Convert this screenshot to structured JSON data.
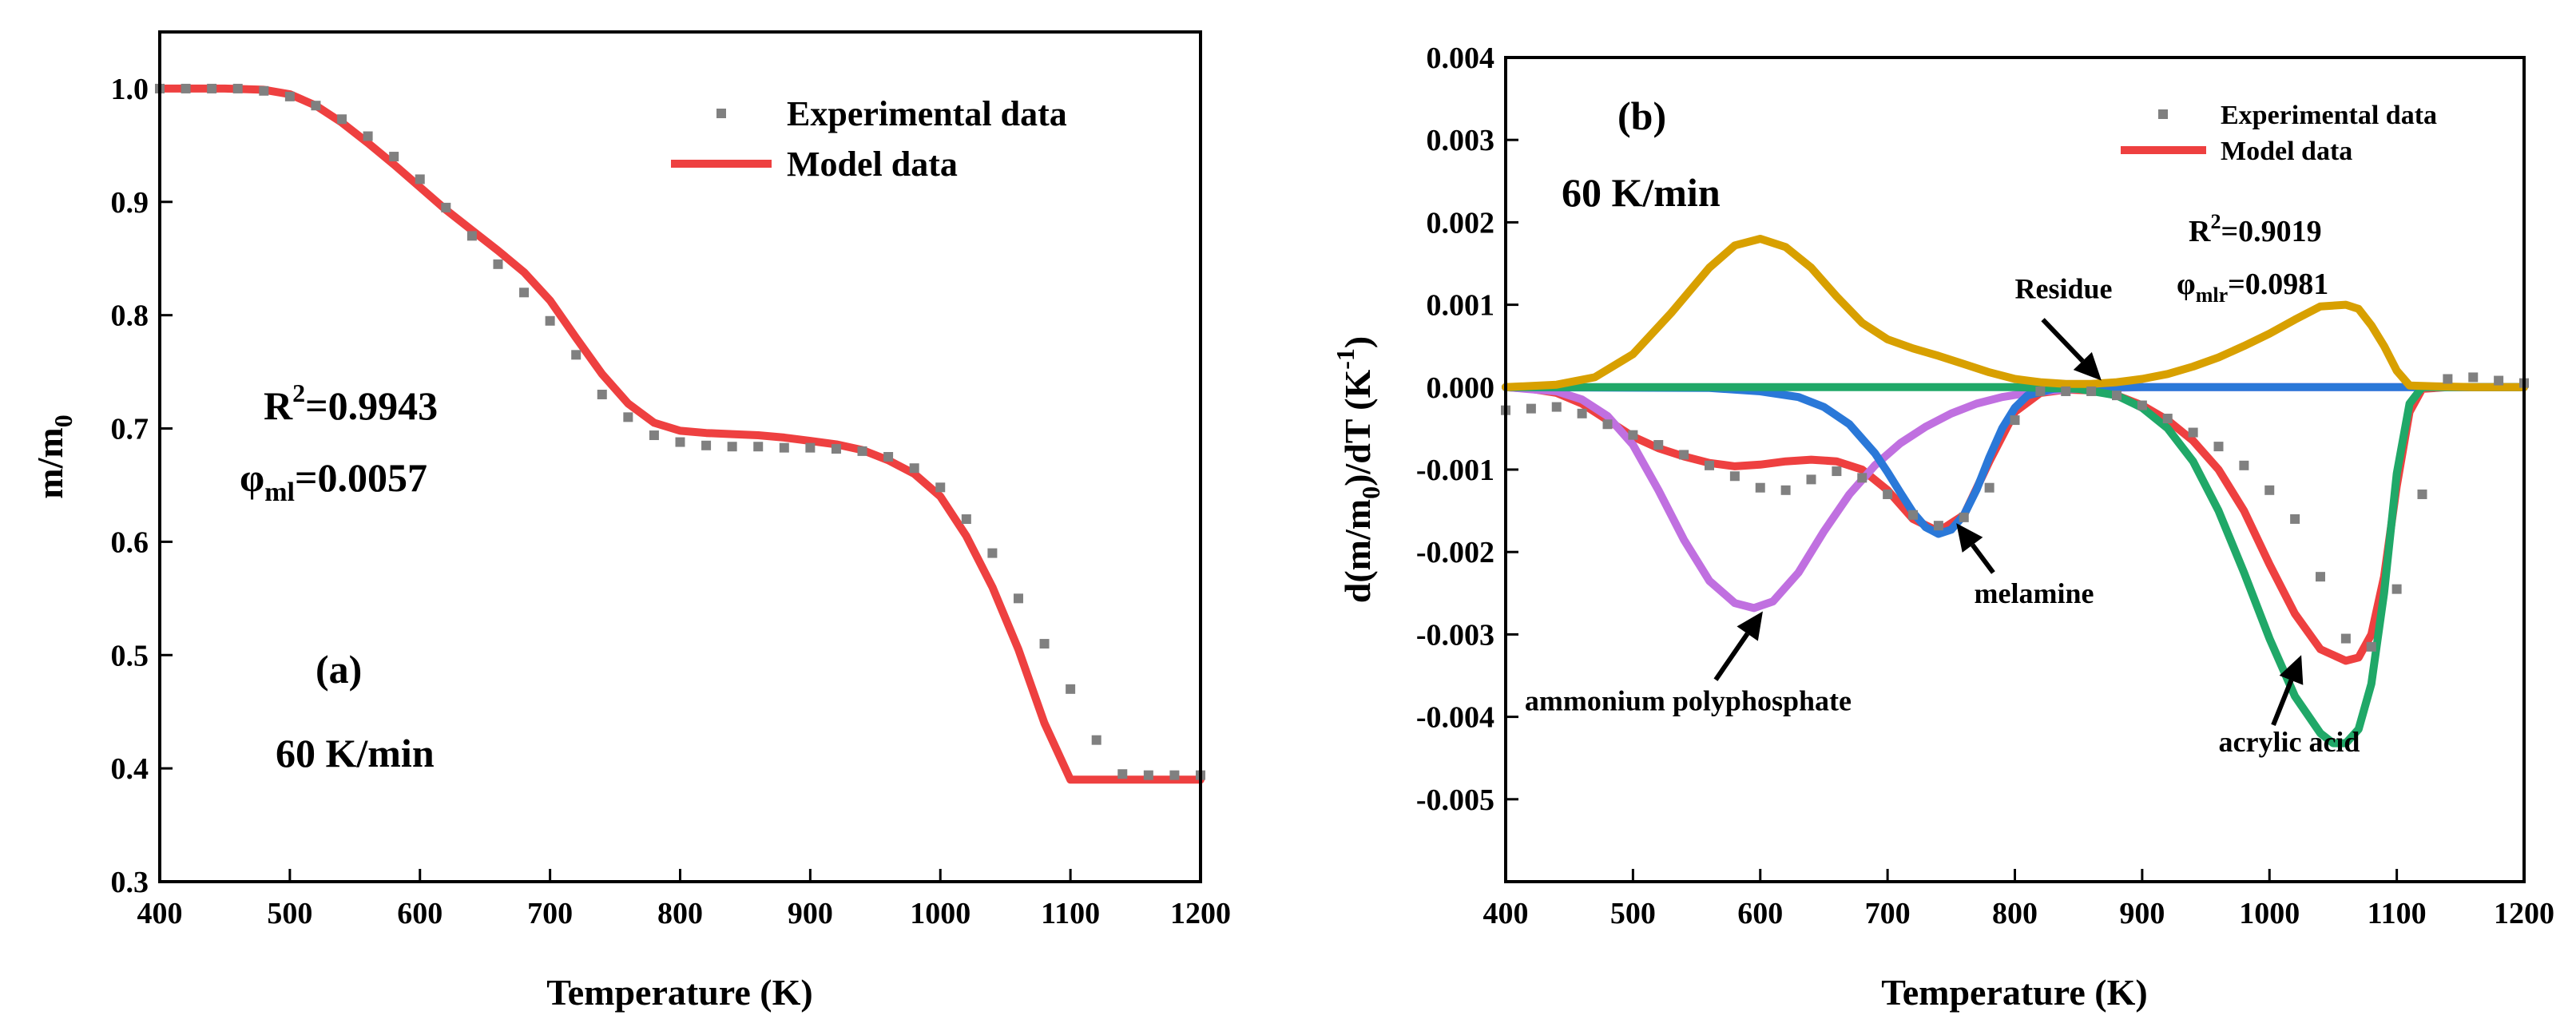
{
  "chart_data": [
    {
      "id": "a",
      "type": "line",
      "xlabel": "Temperature (K)",
      "ylabel": "m/m",
      "ylabel_sub": "0",
      "xlim": [
        400,
        1200
      ],
      "ylim": [
        0.3,
        1.05
      ],
      "xticks": [
        400,
        500,
        600,
        700,
        800,
        900,
        1000,
        1100,
        1200
      ],
      "xtick_labels": [
        "400",
        "500",
        "600",
        "700",
        "800",
        "900",
        "1000",
        "1100",
        "1200"
      ],
      "yticks": [
        0.3,
        0.4,
        0.5,
        0.6,
        0.7,
        0.8,
        0.9,
        1.0
      ],
      "ytick_labels": [
        "0.3",
        "0.4",
        "0.5",
        "0.6",
        "0.7",
        "0.8",
        "0.9",
        "1.0"
      ],
      "legend": {
        "position": "top-right",
        "entries": [
          {
            "name": "Experimental data",
            "style": "square-markers"
          },
          {
            "name": "Model data",
            "style": "line"
          }
        ]
      },
      "annotations": {
        "panel_label": "(a)",
        "rate": "60 K/min",
        "r2_text": "R",
        "r2_sup": "2",
        "r2_value": "=0.9943",
        "phi_text": "φ",
        "phi_sub": "ml",
        "phi_value": "=0.0057"
      },
      "series": [
        {
          "name": "Experimental data",
          "color": "#808080",
          "style": "markers",
          "x": [
            400,
            420,
            440,
            460,
            480,
            500,
            520,
            540,
            560,
            580,
            600,
            620,
            640,
            660,
            680,
            700,
            720,
            740,
            760,
            780,
            800,
            820,
            840,
            860,
            880,
            900,
            920,
            940,
            960,
            980,
            1000,
            1020,
            1040,
            1060,
            1080,
            1100,
            1120,
            1140,
            1160,
            1180,
            1200
          ],
          "y": [
            1.0,
            1.0,
            1.0,
            1.0,
            0.998,
            0.993,
            0.985,
            0.973,
            0.958,
            0.94,
            0.92,
            0.895,
            0.87,
            0.845,
            0.82,
            0.795,
            0.765,
            0.73,
            0.71,
            0.694,
            0.688,
            0.685,
            0.684,
            0.684,
            0.683,
            0.683,
            0.682,
            0.68,
            0.675,
            0.665,
            0.648,
            0.62,
            0.59,
            0.55,
            0.51,
            0.47,
            0.425,
            0.395,
            0.394,
            0.394,
            0.394
          ]
        },
        {
          "name": "Model data",
          "color": "#ee4040",
          "style": "line",
          "x": [
            400,
            450,
            480,
            500,
            520,
            540,
            560,
            580,
            600,
            620,
            640,
            660,
            680,
            700,
            720,
            740,
            760,
            780,
            800,
            820,
            840,
            860,
            880,
            900,
            920,
            940,
            960,
            980,
            1000,
            1020,
            1040,
            1060,
            1080,
            1100,
            1120,
            1140,
            1160,
            1180,
            1200
          ],
          "y": [
            1.0,
            1.0,
            0.999,
            0.995,
            0.985,
            0.97,
            0.952,
            0.933,
            0.913,
            0.893,
            0.875,
            0.857,
            0.838,
            0.813,
            0.78,
            0.748,
            0.722,
            0.705,
            0.698,
            0.696,
            0.695,
            0.694,
            0.692,
            0.689,
            0.686,
            0.681,
            0.672,
            0.66,
            0.64,
            0.605,
            0.56,
            0.505,
            0.44,
            0.39,
            0.39,
            0.39,
            0.39,
            0.39,
            0.39
          ]
        }
      ]
    },
    {
      "id": "b",
      "type": "line",
      "xlabel": "Temperature (K)",
      "ylabel": "d(m/m",
      "ylabel_sub": "0",
      "ylabel_mid": ")/dT (K",
      "ylabel_sup": "-1",
      "ylabel_end": ")",
      "xlim": [
        400,
        1200
      ],
      "ylim": [
        -0.006,
        0.004
      ],
      "xticks": [
        400,
        500,
        600,
        700,
        800,
        900,
        1000,
        1100,
        1200
      ],
      "xtick_labels": [
        "400",
        "500",
        "600",
        "700",
        "800",
        "900",
        "1000",
        "1100",
        "1200"
      ],
      "yticks": [
        -0.005,
        -0.004,
        -0.003,
        -0.002,
        -0.001,
        0.0,
        0.001,
        0.002,
        0.003,
        0.004
      ],
      "ytick_labels": [
        "-0.005",
        "-0.004",
        "-0.003",
        "-0.002",
        "-0.001",
        "0.000",
        "0.001",
        "0.002",
        "0.003",
        "0.004"
      ],
      "legend": {
        "position": "top-right",
        "entries": [
          {
            "name": "Experimental data",
            "style": "square-markers"
          },
          {
            "name": "Model data",
            "style": "line"
          }
        ]
      },
      "annotations": {
        "panel_label": "(b)",
        "rate": "60 K/min",
        "r2_text": "R",
        "r2_sup": "2",
        "r2_value": "=0.9019",
        "phi_text": "φ",
        "phi_sub": "mlr",
        "phi_value": "=0.0981",
        "labels": [
          {
            "text": "Residue",
            "x": 800,
            "y": 0.00108
          },
          {
            "text": "melamine",
            "x": 768,
            "y": -0.00262
          },
          {
            "text": "ammonium polyphosphate",
            "x": 415,
            "y": -0.00392
          },
          {
            "text": "acrylic acid",
            "x": 960,
            "y": -0.00442
          }
        ]
      },
      "series": [
        {
          "name": "Experimental data",
          "color": "#808080",
          "style": "markers",
          "x": [
            400,
            420,
            440,
            460,
            480,
            500,
            520,
            540,
            560,
            580,
            600,
            620,
            640,
            660,
            680,
            700,
            720,
            740,
            760,
            780,
            800,
            820,
            840,
            860,
            880,
            900,
            920,
            940,
            960,
            980,
            1000,
            1020,
            1040,
            1060,
            1080,
            1100,
            1120,
            1140,
            1160,
            1180,
            1200
          ],
          "y": [
            -0.00028,
            -0.00026,
            -0.00024,
            -0.00032,
            -0.00045,
            -0.00058,
            -0.0007,
            -0.00082,
            -0.00095,
            -0.00108,
            -0.00122,
            -0.00125,
            -0.00112,
            -0.00102,
            -0.0011,
            -0.0013,
            -0.00155,
            -0.00168,
            -0.00158,
            -0.00122,
            -0.0004,
            -5e-05,
            -5e-05,
            -5e-05,
            -0.0001,
            -0.00022,
            -0.00038,
            -0.00055,
            -0.00072,
            -0.00095,
            -0.00125,
            -0.0016,
            -0.0023,
            -0.00305,
            -0.00315,
            -0.00245,
            -0.0013,
            0.0001,
            0.00012,
            8e-05,
            5e-05
          ]
        },
        {
          "name": "Model data",
          "color": "#ee4040",
          "style": "line",
          "x": [
            400,
            420,
            440,
            460,
            480,
            500,
            520,
            540,
            560,
            580,
            600,
            620,
            640,
            660,
            680,
            700,
            720,
            740,
            760,
            780,
            800,
            820,
            840,
            860,
            880,
            900,
            920,
            940,
            960,
            980,
            1000,
            1020,
            1040,
            1060,
            1070,
            1080,
            1090,
            1100,
            1110,
            1120,
            1140,
            1160,
            1200
          ],
          "y": [
            0.0,
            -2e-05,
            -7e-05,
            -0.0002,
            -0.0004,
            -0.0006,
            -0.00074,
            -0.00084,
            -0.00092,
            -0.00096,
            -0.00094,
            -0.0009,
            -0.00088,
            -0.0009,
            -0.001,
            -0.00125,
            -0.0016,
            -0.00175,
            -0.00155,
            -0.0009,
            -0.0003,
            -7e-05,
            -3e-05,
            -4e-05,
            -0.0001,
            -0.00022,
            -0.0004,
            -0.00065,
            -0.001,
            -0.0015,
            -0.00215,
            -0.00275,
            -0.00318,
            -0.00332,
            -0.00328,
            -0.003,
            -0.0023,
            -0.0012,
            -0.0003,
            -2e-05,
            0.0,
            0.0,
            0.0
          ]
        },
        {
          "name": "ammonium polyphosphate",
          "color": "#c070e0",
          "style": "line",
          "x": [
            400,
            440,
            460,
            480,
            500,
            520,
            540,
            560,
            580,
            595,
            610,
            630,
            650,
            670,
            690,
            710,
            730,
            750,
            770,
            790,
            810,
            830,
            850,
            870,
            900,
            950,
            1000,
            1100,
            1200
          ],
          "y": [
            0.0,
            -5e-05,
            -0.00015,
            -0.00035,
            -0.0007,
            -0.00125,
            -0.00185,
            -0.00235,
            -0.00262,
            -0.00268,
            -0.0026,
            -0.00225,
            -0.00175,
            -0.0013,
            -0.00095,
            -0.00068,
            -0.00048,
            -0.00032,
            -0.0002,
            -0.00012,
            -7e-05,
            -4e-05,
            -2e-05,
            -1e-05,
            0.0,
            0.0,
            0.0,
            0.0,
            0.0
          ]
        },
        {
          "name": "melamine",
          "color": "#2a78d8",
          "style": "line",
          "x": [
            400,
            560,
            600,
            630,
            650,
            670,
            690,
            700,
            710,
            720,
            730,
            740,
            750,
            760,
            770,
            780,
            790,
            800,
            810,
            830,
            850,
            900,
            1200
          ],
          "y": [
            0.0,
            -1e-05,
            -5e-05,
            -0.00012,
            -0.00024,
            -0.00045,
            -0.0008,
            -0.00103,
            -0.00128,
            -0.00152,
            -0.0017,
            -0.00178,
            -0.00173,
            -0.00155,
            -0.00124,
            -0.00085,
            -0.0005,
            -0.00025,
            -0.0001,
            -2e-05,
            0.0,
            0.0,
            0.0
          ]
        },
        {
          "name": "acrylic acid",
          "color": "#20a868",
          "style": "line",
          "x": [
            400,
            800,
            850,
            880,
            900,
            920,
            940,
            960,
            980,
            1000,
            1020,
            1040,
            1050,
            1060,
            1070,
            1080,
            1090,
            1100,
            1110,
            1120,
            1140,
            1200
          ],
          "y": [
            0.0,
            0.0,
            -2e-05,
            -0.0001,
            -0.00025,
            -0.0005,
            -0.0009,
            -0.0015,
            -0.00225,
            -0.00305,
            -0.00375,
            -0.0042,
            -0.00432,
            -0.00432,
            -0.00415,
            -0.0036,
            -0.0025,
            -0.00105,
            -0.0002,
            0.0,
            0.0,
            0.0
          ]
        },
        {
          "name": "Residue",
          "color": "#d8a000",
          "style": "line",
          "x": [
            400,
            440,
            470,
            500,
            530,
            560,
            580,
            600,
            620,
            640,
            660,
            680,
            700,
            720,
            740,
            760,
            780,
            800,
            820,
            840,
            860,
            880,
            900,
            920,
            940,
            960,
            980,
            1000,
            1020,
            1040,
            1060,
            1070,
            1080,
            1090,
            1100,
            1110,
            1130,
            1160,
            1200
          ],
          "y": [
            0.0,
            3e-05,
            0.00012,
            0.0004,
            0.0009,
            0.00145,
            0.00172,
            0.0018,
            0.0017,
            0.00145,
            0.0011,
            0.00078,
            0.00058,
            0.00047,
            0.00038,
            0.00028,
            0.00018,
            0.0001,
            6e-05,
            4e-05,
            4e-05,
            6e-05,
            0.0001,
            0.00016,
            0.00025,
            0.00036,
            0.0005,
            0.00065,
            0.00082,
            0.00098,
            0.001,
            0.00095,
            0.00075,
            0.0005,
            0.0002,
            2e-05,
            1e-05,
            0.0,
            0.0
          ]
        }
      ]
    }
  ]
}
